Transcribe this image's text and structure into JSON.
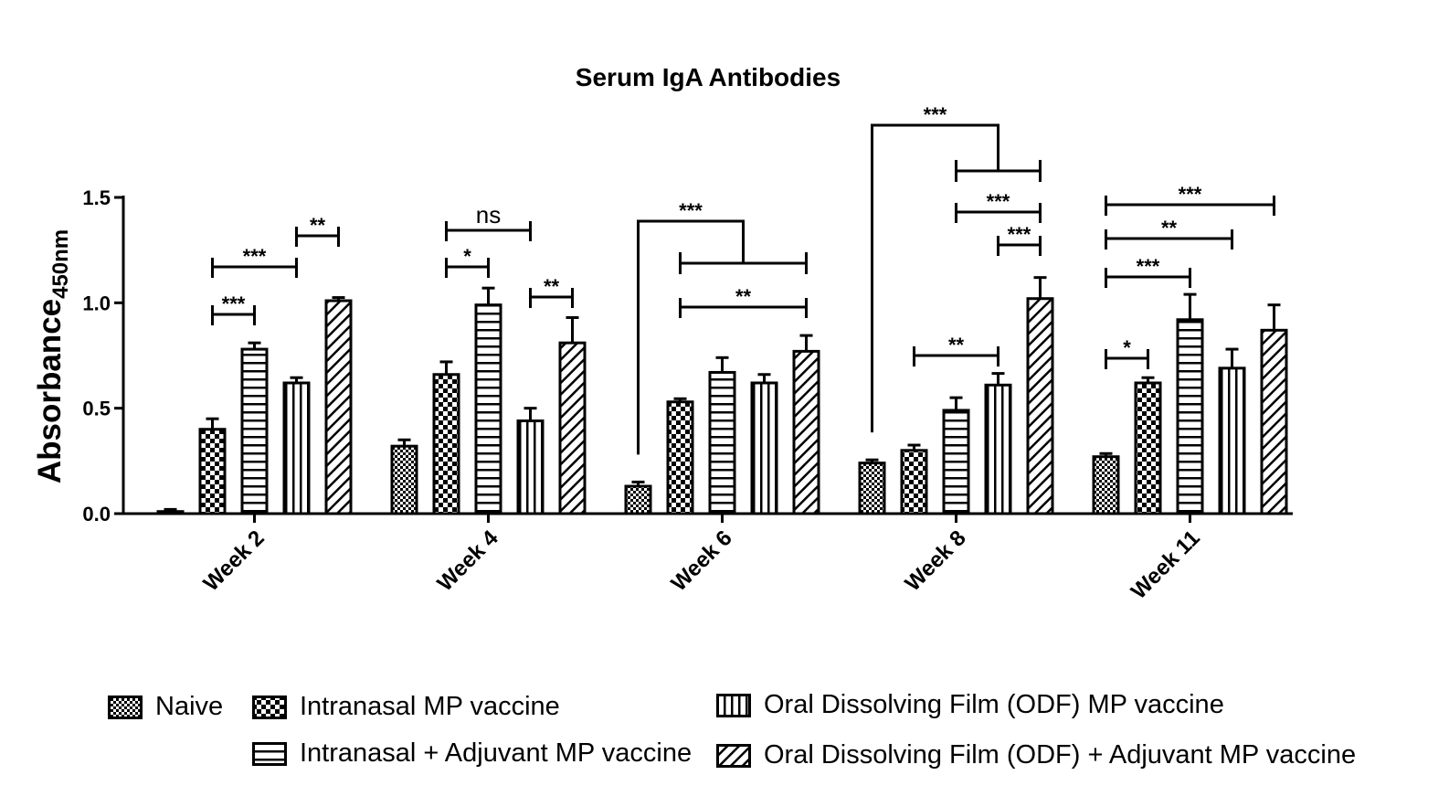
{
  "chart_data": {
    "type": "bar",
    "title": "Serum IgA Antibodies",
    "ylabel": "Absorbance",
    "ylabel_sub": "450nm",
    "xlabel": "",
    "ylim": [
      0,
      1.5
    ],
    "yticks": [
      "0.0",
      "0.5",
      "1.0",
      "1.5"
    ],
    "categories": [
      "Week 2",
      "Week 4",
      "Week 6",
      "Week 8",
      "Week 11"
    ],
    "series": [
      {
        "name": "Naive",
        "pattern": "fine-checker",
        "values": [
          0.01,
          0.32,
          0.13,
          0.24,
          0.27
        ],
        "errors": [
          0.01,
          0.03,
          0.02,
          0.015,
          0.015
        ]
      },
      {
        "name": "Intranasal MP vaccine",
        "pattern": "coarse-checker",
        "values": [
          0.4,
          0.66,
          0.53,
          0.3,
          0.62
        ],
        "errors": [
          0.05,
          0.06,
          0.015,
          0.025,
          0.025
        ]
      },
      {
        "name": "Intranasal + Adjuvant MP vaccine",
        "pattern": "horizontal",
        "values": [
          0.78,
          0.99,
          0.67,
          0.49,
          0.92
        ],
        "errors": [
          0.03,
          0.08,
          0.07,
          0.06,
          0.12
        ]
      },
      {
        "name": "Oral Dissolving Film (ODF) MP vaccine",
        "pattern": "vertical",
        "values": [
          0.62,
          0.44,
          0.62,
          0.61,
          0.69
        ],
        "errors": [
          0.025,
          0.06,
          0.04,
          0.055,
          0.09
        ]
      },
      {
        "name": "Oral Dissolving Film (ODF)  + Adjuvant MP vaccine",
        "pattern": "diagonal",
        "values": [
          1.01,
          0.81,
          0.77,
          1.02,
          0.87
        ],
        "errors": [
          0.015,
          0.12,
          0.075,
          0.1,
          0.12
        ]
      }
    ],
    "significance": [
      {
        "category": 0,
        "from": 1,
        "to": 2,
        "label": "***"
      },
      {
        "category": 0,
        "from": 1,
        "to": 3,
        "label": "***"
      },
      {
        "category": 0,
        "from": 3,
        "to": 4,
        "label": "**"
      },
      {
        "category": 1,
        "from": 1,
        "to": 2,
        "label": "*"
      },
      {
        "category": 1,
        "from": 1,
        "to": 3,
        "label": "ns"
      },
      {
        "category": 1,
        "from": 3,
        "to": 4,
        "label": "**"
      },
      {
        "category": 2,
        "from": 1,
        "to": 4,
        "label": "**"
      },
      {
        "category": 2,
        "from": 0,
        "to": [
          1,
          4
        ],
        "label": "***"
      },
      {
        "category": 3,
        "from": 1,
        "to": 3,
        "label": "**"
      },
      {
        "category": 3,
        "from": 3,
        "to": 4,
        "label": "***"
      },
      {
        "category": 3,
        "from": 2,
        "to": 4,
        "label": "***"
      },
      {
        "category": 3,
        "from": 0,
        "to": [
          2,
          4
        ],
        "label": "***"
      },
      {
        "category": 4,
        "from": 0,
        "to": 1,
        "label": "*"
      },
      {
        "category": 4,
        "from": 0,
        "to": 2,
        "label": "***"
      },
      {
        "category": 4,
        "from": 0,
        "to": 3,
        "label": "**"
      },
      {
        "category": 4,
        "from": 0,
        "to": 4,
        "label": "***"
      }
    ],
    "legend": [
      "Naive",
      "Intranasal MP vaccine",
      "Intranasal + Adjuvant MP vaccine",
      "Oral Dissolving Film (ODF) MP vaccine",
      "Oral Dissolving Film (ODF)  + Adjuvant MP vaccine"
    ],
    "legend_position": "bottom",
    "grid": false
  }
}
